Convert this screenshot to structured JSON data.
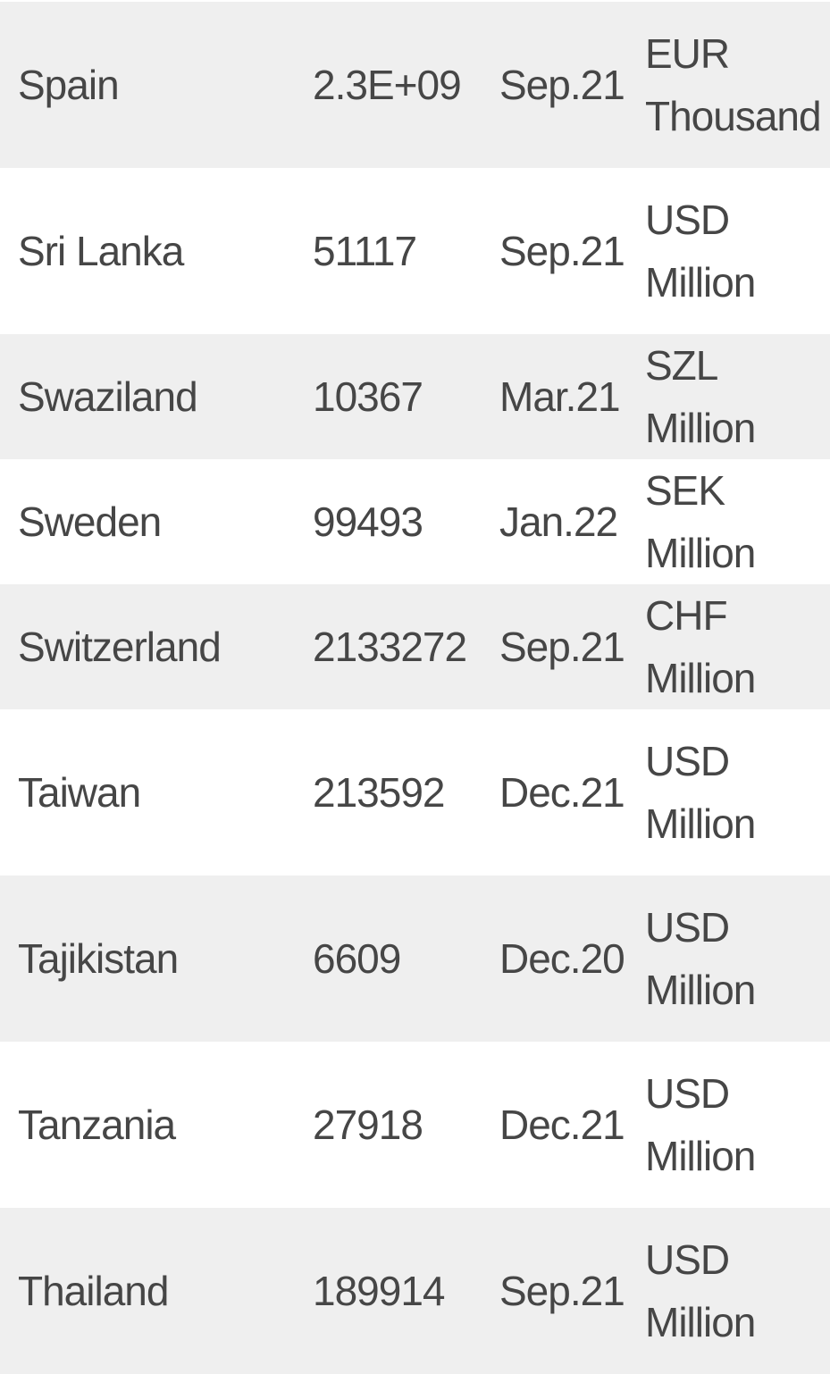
{
  "rows": [
    {
      "country": "Spain",
      "value": "2.3E+09",
      "date": "Sep.21",
      "unit": "EUR Thousand"
    },
    {
      "country": "Sri Lanka",
      "value": "51117",
      "date": "Sep.21",
      "unit": "USD Million"
    },
    {
      "country": "Swaziland",
      "value": "10367",
      "date": "Mar.21",
      "unit": "SZL Million"
    },
    {
      "country": "Sweden",
      "value": "99493",
      "date": "Jan.22",
      "unit": "SEK Million"
    },
    {
      "country": "Switzerland",
      "value": "2133272",
      "date": "Sep.21",
      "unit": "CHF Million"
    },
    {
      "country": "Taiwan",
      "value": "213592",
      "date": "Dec.21",
      "unit": "USD Million"
    },
    {
      "country": "Tajikistan",
      "value": "6609",
      "date": "Dec.20",
      "unit": "USD Million"
    },
    {
      "country": "Tanzania",
      "value": "27918",
      "date": "Dec.21",
      "unit": "USD Million"
    },
    {
      "country": "Thailand",
      "value": "189914",
      "date": "Sep.21",
      "unit": "USD Million"
    }
  ]
}
